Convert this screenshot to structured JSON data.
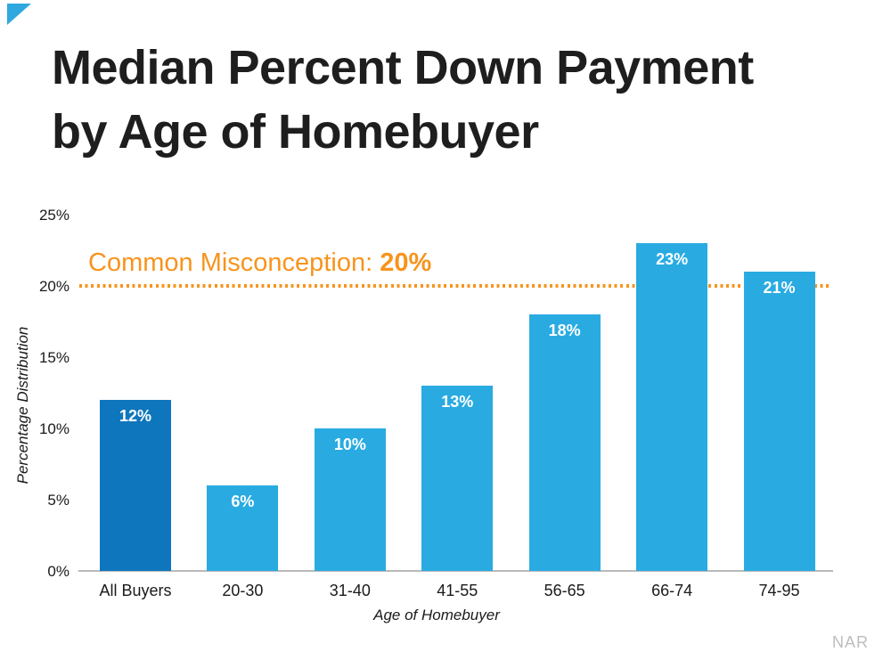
{
  "page": {
    "background": "#ffffff",
    "source_note": "NAR",
    "corner_triangle_color": "#2fa8df"
  },
  "title": {
    "line1": "Median Percent Down Payment",
    "line2": "by Age of Homebuyer",
    "color": "#1e1e1e"
  },
  "annotation": {
    "prefix": "Common Misconception: ",
    "value": "20%",
    "color": "#f7941d"
  },
  "chart_data": {
    "type": "bar",
    "categories": [
      "All Buyers",
      "20-30",
      "31-40",
      "41-55",
      "56-65",
      "66-74",
      "74-95"
    ],
    "values": [
      12,
      6,
      10,
      13,
      18,
      23,
      21
    ],
    "bar_labels": [
      "12%",
      "6%",
      "10%",
      "13%",
      "18%",
      "23%",
      "21%"
    ],
    "bar_colors": [
      "#0e76bc",
      "#29abe2",
      "#29abe2",
      "#29abe2",
      "#29abe2",
      "#29abe2",
      "#29abe2"
    ],
    "highlight_index": 0,
    "highlight_color": "#0e76bc",
    "default_bar_color": "#29abe2",
    "title": "Median Percent Down Payment by Age of Homebuyer",
    "xlabel": "Age of Homebuyer",
    "ylabel": "Percentage Distribution",
    "ylim": [
      0,
      25
    ],
    "ytick_values": [
      0,
      5,
      10,
      15,
      20,
      25
    ],
    "ytick_labels": [
      "0%",
      "5%",
      "10%",
      "15%",
      "20%",
      "25%"
    ],
    "grid": false,
    "legend": false,
    "reference_line": {
      "value": 20,
      "label": "Common Misconception: 20%",
      "color": "#f7941d",
      "style": "dotted",
      "position": "behind-bars"
    },
    "value_label_color": "#ffffff",
    "axis_line_color": "#b9b9b9"
  }
}
